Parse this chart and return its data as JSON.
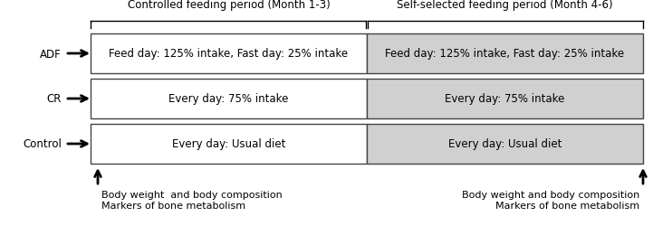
{
  "col1_header": "Controlled feeding period (Month 1-3)",
  "col2_header": "Self-selected feeding period (Month 4-6)",
  "rows": [
    {
      "label": "ADF",
      "col1_text": "Feed day: 125% intake, Fast day: 25% intake",
      "col2_text": "Feed day: 125% intake, Fast day: 25% intake"
    },
    {
      "label": "CR",
      "col1_text": "Every day: 75% intake",
      "col2_text": "Every day: 75% intake"
    },
    {
      "label": "Control",
      "col1_text": "Every day: Usual diet",
      "col2_text": "Every day: Usual diet"
    }
  ],
  "bottom_left_text": "Body weight  and body composition\nMarkers of bone metabolism",
  "bottom_right_text": "Body weight and body composition\nMarkers of bone metabolism",
  "col1_color": "#ffffff",
  "col2_color": "#d0d0d0",
  "border_color": "#444444",
  "text_color": "#000000",
  "fig_width": 7.21,
  "fig_height": 2.51,
  "dpi": 100
}
